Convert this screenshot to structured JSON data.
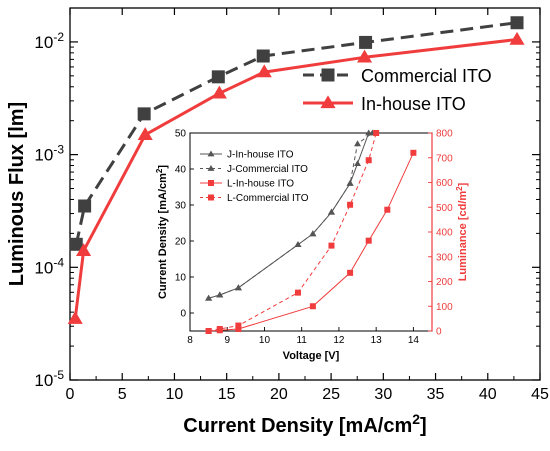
{
  "chart_data": [
    {
      "type": "line",
      "title": "",
      "xlabel": "Current Density [mA/cm²]",
      "ylabel": "Luminous Flux [lm]",
      "x_scale": "linear",
      "y_scale": "log",
      "xlim": [
        0,
        45
      ],
      "ylim": [
        1e-05,
        0.02
      ],
      "x_ticks": [
        0,
        5,
        10,
        15,
        20,
        25,
        30,
        35,
        40,
        45
      ],
      "y_ticks": [
        1e-05,
        0.0001,
        0.001,
        0.01
      ],
      "y_tick_labels": [
        {
          "base": "10",
          "exp": "-5"
        },
        {
          "base": "10",
          "exp": "-4"
        },
        {
          "base": "10",
          "exp": "-3"
        },
        {
          "base": "10",
          "exp": "-2"
        }
      ],
      "legend": "top-right",
      "series": [
        {
          "name": "Commercial ITO",
          "color": "#404040",
          "line_style": "dashed",
          "marker": "square",
          "x": [
            0.6,
            1.4,
            7.1,
            14.2,
            18.5,
            28.3,
            42.8
          ],
          "y": [
            0.00016,
            0.00035,
            0.0023,
            0.0049,
            0.0075,
            0.0099,
            0.0148
          ]
        },
        {
          "name": "In-house ITO",
          "color": "#f03c3c",
          "line_style": "solid",
          "marker": "triangle",
          "x": [
            0.5,
            1.3,
            7.2,
            14.3,
            18.6,
            28.2,
            42.8
          ],
          "y": [
            3.5e-05,
            0.00014,
            0.0015,
            0.0035,
            0.0054,
            0.0073,
            0.0105
          ]
        }
      ]
    },
    {
      "type": "line",
      "title": "",
      "xlabel": "Voltage [V]",
      "ylabel": "Current Density [mA/cm²]",
      "y2label": "Luminance [cd/m²]",
      "xlim": [
        8,
        14.5
      ],
      "ylim": [
        -5,
        50
      ],
      "y2lim": [
        0,
        800
      ],
      "x_ticks": [
        8,
        9,
        10,
        11,
        12,
        13,
        14
      ],
      "y_ticks": [
        0,
        10,
        20,
        30,
        40,
        50
      ],
      "y2_ticks": [
        0,
        100,
        200,
        300,
        400,
        500,
        600,
        700,
        800
      ],
      "legend": "top-left",
      "series": [
        {
          "name": "J-In-house ITO",
          "axis": "left",
          "color": "#555555",
          "line_style": "solid",
          "marker": "triangle",
          "x": [
            8.5,
            8.8,
            9.3,
            10.9,
            11.3,
            11.8,
            12.3,
            12.5,
            12.8
          ],
          "y": [
            4.1,
            5.0,
            7.0,
            19.0,
            22.0,
            28.0,
            36.0,
            41.5,
            50.0
          ]
        },
        {
          "name": "J-Commercial ITO",
          "axis": "left",
          "color": "#555555",
          "line_style": "dashed",
          "marker": "triangle",
          "x": [
            8.5,
            8.8,
            9.3,
            10.9,
            11.3,
            11.8,
            12.3,
            12.5,
            12.9
          ],
          "y": [
            4.1,
            5.0,
            7.0,
            19.0,
            22.0,
            28.0,
            36.0,
            47.0,
            50.0
          ]
        },
        {
          "name": "L-In-house ITO",
          "axis": "right",
          "color": "#f03c3c",
          "line_style": "solid",
          "marker": "square",
          "x": [
            8.5,
            8.8,
            9.3,
            11.3,
            12.3,
            12.8,
            13.3,
            14.0
          ],
          "y": [
            0,
            3,
            8,
            100,
            235,
            365,
            490,
            720
          ]
        },
        {
          "name": "L-Commercial ITO",
          "axis": "right",
          "color": "#f03c3c",
          "line_style": "dashed",
          "marker": "square",
          "x": [
            8.5,
            8.8,
            9.3,
            10.9,
            11.8,
            12.3,
            12.8,
            13.0
          ],
          "y": [
            0,
            8,
            22,
            155,
            345,
            510,
            690,
            800
          ]
        }
      ]
    }
  ]
}
